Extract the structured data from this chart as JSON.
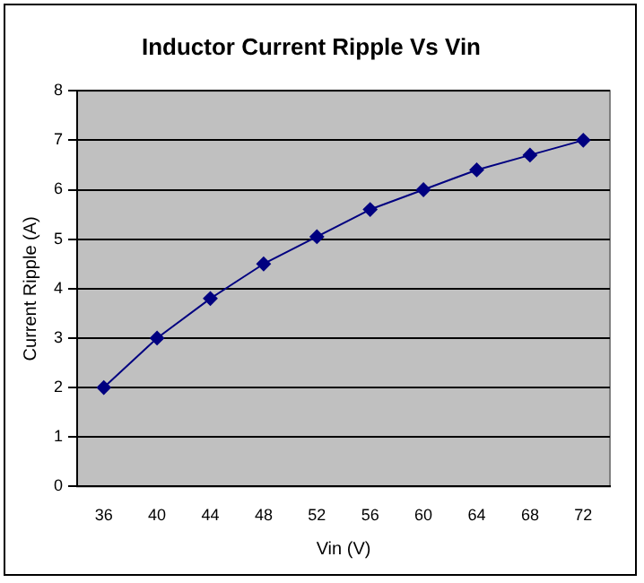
{
  "chart_data": {
    "type": "line",
    "title": "Inductor Current Ripple Vs Vin",
    "xlabel": "Vin (V)",
    "ylabel": "Current Ripple (A)",
    "categories": [
      "36",
      "40",
      "44",
      "48",
      "52",
      "56",
      "60",
      "64",
      "68",
      "72"
    ],
    "series": [
      {
        "color": "#000080",
        "values": [
          2.0,
          3.0,
          3.8,
          4.5,
          5.05,
          5.6,
          6.0,
          6.4,
          6.7,
          7.0
        ]
      }
    ],
    "ylim": [
      0,
      8
    ],
    "yticks": [
      0,
      1,
      2,
      3,
      4,
      5,
      6,
      7,
      8
    ],
    "grid": "y",
    "marker": "diamond",
    "line_style": "solid",
    "legend": false
  }
}
